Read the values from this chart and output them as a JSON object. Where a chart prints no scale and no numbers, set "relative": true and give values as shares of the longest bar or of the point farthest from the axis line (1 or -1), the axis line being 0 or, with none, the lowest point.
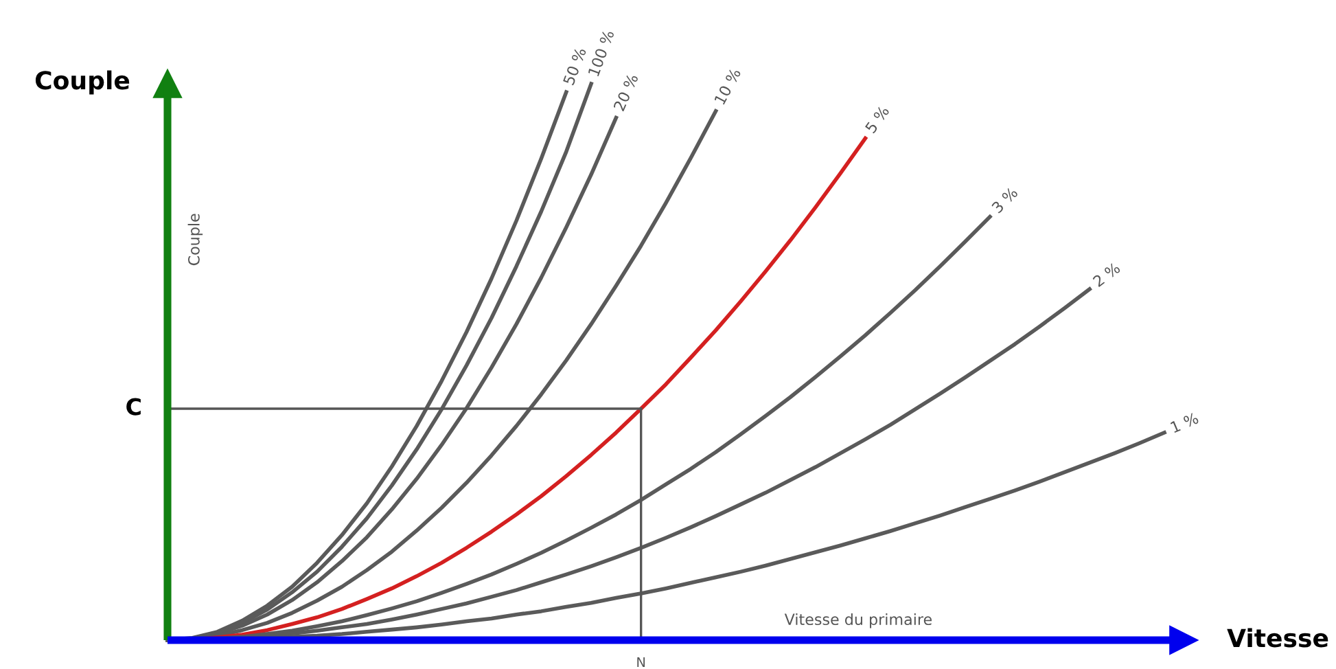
{
  "chart_data": {
    "type": "line",
    "relative": true,
    "ylabel": "Couple",
    "xlabel": "Vitesse",
    "annotations": [
      "Couple",
      "Vitesse du primaire",
      "N"
    ],
    "categories": [
      null,
      null,
      null,
      null,
      null,
      null,
      null,
      null,
      null,
      null,
      null,
      null,
      null,
      null,
      null,
      null,
      null,
      null,
      null,
      null,
      null,
      null,
      null,
      null,
      null,
      null,
      null,
      null,
      null,
      null,
      null,
      null,
      null,
      null,
      null,
      null,
      null,
      null,
      null,
      null,
      null
    ],
    "ref_lines": [
      {
        "axis": "y",
        "value": 0.416,
        "label": "C",
        "color": "#555555"
      }
    ],
    "legend": false,
    "marker": "none",
    "line_style": "solid",
    "series": [
      {
        "name": "50 %",
        "color": "#5a5a5a",
        "values": [
          0,
          0.004,
          0.015,
          0.035,
          0.062,
          0.096,
          0.139,
          0.189,
          0.246,
          0.312,
          0.385,
          0.466,
          0.554,
          0.65,
          0.754,
          0.866,
          0.985,
          null,
          null,
          null,
          null,
          null,
          null,
          null,
          null,
          null,
          null,
          null,
          null,
          null,
          null,
          null,
          null,
          null,
          null,
          null,
          null,
          null,
          null,
          null,
          null
        ]
      },
      {
        "name": "100 %",
        "color": "#5a5a5a",
        "values": [
          0,
          0.003,
          0.014,
          0.031,
          0.055,
          0.086,
          0.123,
          0.168,
          0.219,
          0.278,
          0.343,
          0.415,
          0.494,
          0.579,
          0.672,
          0.771,
          0.878,
          1,
          null,
          null,
          null,
          null,
          null,
          null,
          null,
          null,
          null,
          null,
          null,
          null,
          null,
          null,
          null,
          null,
          null,
          null,
          null,
          null,
          null,
          null,
          null
        ]
      },
      {
        "name": "20 %",
        "color": "#5a5a5a",
        "values": [
          0,
          0.003,
          0.012,
          0.026,
          0.046,
          0.072,
          0.104,
          0.142,
          0.185,
          0.235,
          0.29,
          0.351,
          0.417,
          0.49,
          0.568,
          0.652,
          0.742,
          0.837,
          0.939,
          null,
          null,
          null,
          null,
          null,
          null,
          null,
          null,
          null,
          null,
          null,
          null,
          null,
          null,
          null,
          null,
          null,
          null,
          null,
          null,
          null,
          null
        ]
      },
      {
        "name": "10 %",
        "color": "#5a5a5a",
        "values": [
          0,
          0.002,
          0.008,
          0.018,
          0.031,
          0.049,
          0.071,
          0.096,
          0.126,
          0.159,
          0.197,
          0.238,
          0.283,
          0.332,
          0.385,
          0.442,
          0.503,
          0.568,
          0.637,
          0.709,
          0.786,
          0.867,
          0.951,
          null,
          null,
          null,
          null,
          null,
          null,
          null,
          null,
          null,
          null,
          null,
          null,
          null,
          null,
          null,
          null,
          null,
          null
        ]
      },
      {
        "name": "5 %",
        "color": "#d42020",
        "values": [
          0,
          0.001,
          0.005,
          0.01,
          0.018,
          0.029,
          0.041,
          0.056,
          0.074,
          0.093,
          0.115,
          0.139,
          0.166,
          0.195,
          0.226,
          0.259,
          0.295,
          0.333,
          0.373,
          0.416,
          0.46,
          0.508,
          0.557,
          0.609,
          0.663,
          0.719,
          0.778,
          0.839,
          0.902,
          null,
          null,
          null,
          null,
          null,
          null,
          null,
          null,
          null,
          null,
          null,
          null
        ]
      },
      {
        "name": "3 %",
        "color": "#5a5a5a",
        "values": [
          0,
          0.001,
          0.003,
          0.006,
          0.011,
          0.017,
          0.025,
          0.034,
          0.045,
          0.057,
          0.07,
          0.085,
          0.101,
          0.118,
          0.137,
          0.157,
          0.179,
          0.202,
          0.226,
          0.252,
          0.28,
          0.308,
          0.338,
          0.37,
          0.403,
          0.437,
          0.473,
          0.51,
          0.548,
          0.588,
          0.629,
          0.672,
          0.716,
          0.761,
          null,
          null,
          null,
          null,
          null,
          null,
          null
        ]
      },
      {
        "name": "2 %",
        "color": "#5a5a5a",
        "values": [
          0,
          0.0,
          0.002,
          0.004,
          0.007,
          0.012,
          0.017,
          0.023,
          0.029,
          0.037,
          0.046,
          0.056,
          0.066,
          0.078,
          0.09,
          0.104,
          0.118,
          0.133,
          0.149,
          0.166,
          0.184,
          0.203,
          0.223,
          0.244,
          0.265,
          0.288,
          0.311,
          0.336,
          0.361,
          0.387,
          0.415,
          0.443,
          0.472,
          0.502,
          0.532,
          0.564,
          0.597,
          0.631,
          null,
          null,
          null
        ]
      },
      {
        "name": "1 %",
        "color": "#5a5a5a",
        "values": [
          0,
          0.0,
          0.001,
          0.002,
          0.004,
          0.006,
          0.008,
          0.011,
          0.015,
          0.019,
          0.023,
          0.028,
          0.034,
          0.039,
          0.046,
          0.052,
          0.06,
          0.067,
          0.076,
          0.084,
          0.093,
          0.103,
          0.113,
          0.123,
          0.134,
          0.146,
          0.158,
          0.17,
          0.183,
          0.196,
          0.21,
          0.224,
          0.239,
          0.254,
          0.269,
          0.285,
          0.302,
          0.319,
          0.336,
          0.354,
          0.373
        ]
      }
    ]
  }
}
